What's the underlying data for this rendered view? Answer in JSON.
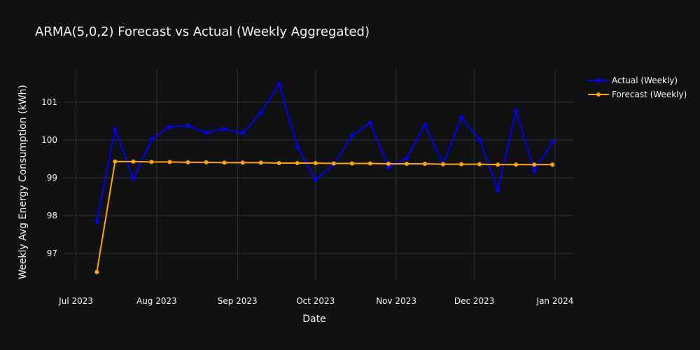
{
  "chart_data": {
    "type": "line",
    "title": "ARMA(5,0,2) Forecast vs Actual (Weekly Aggregated)",
    "xlabel": "Date",
    "ylabel": "Weekly Avg Energy Consumption (kWh)",
    "x_ticks": [
      "Jul 2023",
      "Aug 2023",
      "Sep 2023",
      "Oct 2023",
      "Nov 2023",
      "Dec 2023",
      "Jan 2024"
    ],
    "y_ticks": [
      "97",
      "98",
      "99",
      "100",
      "101"
    ],
    "ylim": [
      96.3,
      101.85
    ],
    "xlim": [
      "2023-06-26",
      "2024-01-08"
    ],
    "grid": true,
    "legend_position": "top-right",
    "x": [
      "2023-07-09",
      "2023-07-16",
      "2023-07-23",
      "2023-07-30",
      "2023-08-06",
      "2023-08-13",
      "2023-08-20",
      "2023-08-27",
      "2023-09-03",
      "2023-09-10",
      "2023-09-17",
      "2023-09-24",
      "2023-10-01",
      "2023-10-08",
      "2023-10-15",
      "2023-10-22",
      "2023-10-29",
      "2023-11-05",
      "2023-11-12",
      "2023-11-19",
      "2023-11-26",
      "2023-12-03",
      "2023-12-10",
      "2023-12-17",
      "2023-12-24",
      "2023-12-31"
    ],
    "series": [
      {
        "name": "Actual (Weekly)",
        "color": "#0000ff",
        "values": [
          97.85,
          100.28,
          98.98,
          100.02,
          100.35,
          100.38,
          100.19,
          100.29,
          100.18,
          100.72,
          101.48,
          99.82,
          98.95,
          99.35,
          100.11,
          100.45,
          99.27,
          99.52,
          100.4,
          99.36,
          100.59,
          100.01,
          98.67,
          100.77,
          99.18,
          99.95
        ]
      },
      {
        "name": "Forecast (Weekly)",
        "color": "#ffa500",
        "values": [
          96.51,
          99.43,
          99.43,
          99.42,
          99.42,
          99.41,
          99.41,
          99.4,
          99.4,
          99.4,
          99.39,
          99.39,
          99.39,
          99.38,
          99.38,
          99.38,
          99.37,
          99.37,
          99.37,
          99.36,
          99.36,
          99.36,
          99.35,
          99.35,
          99.35,
          99.35
        ]
      }
    ]
  }
}
